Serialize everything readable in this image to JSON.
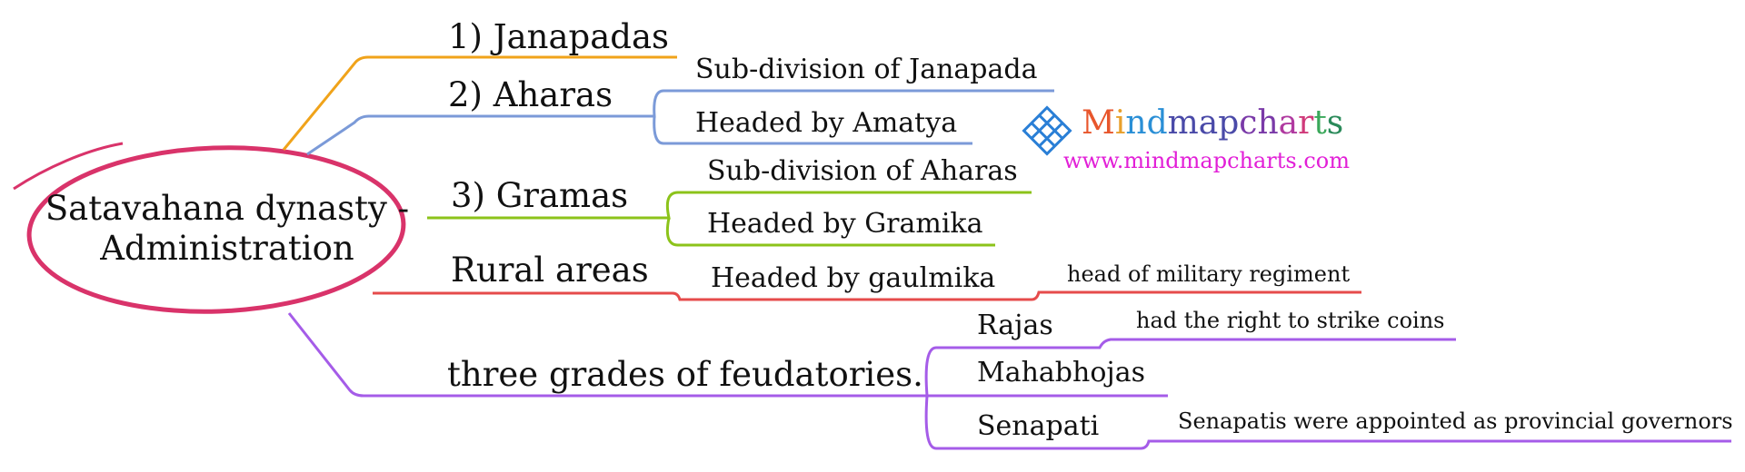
{
  "central": {
    "line1": "Satavahana dynasty -",
    "line2": "Administration",
    "color": "#d9336a"
  },
  "branches": [
    {
      "id": "janapadas",
      "label": "1) Janapadas",
      "color": "#f0a31a",
      "children": []
    },
    {
      "id": "aharas",
      "label": "2) Aharas",
      "color": "#7b9ad8",
      "children": [
        {
          "label": "Sub-division of Janapada"
        },
        {
          "label": "Headed by Amatya"
        }
      ]
    },
    {
      "id": "gramas",
      "label": "3) Gramas",
      "color": "#8cc31a",
      "children": [
        {
          "label": "Sub-division of Aharas"
        },
        {
          "label": "Headed by Gramika"
        }
      ]
    },
    {
      "id": "rural",
      "label": "Rural areas",
      "color": "#e64b4b",
      "children": [
        {
          "label": "Headed by gaulmika",
          "children": [
            {
              "label": "head of military regiment"
            }
          ]
        }
      ]
    },
    {
      "id": "feudatories",
      "label": "three grades of feudatories.",
      "color": "#a55ce8",
      "children": [
        {
          "label": "Rajas",
          "children": [
            {
              "label": "had the right to strike coins"
            }
          ]
        },
        {
          "label": "Mahabhojas"
        },
        {
          "label": "Senapati",
          "children": [
            {
              "label": "Senapatis were appointed as provincial governors"
            }
          ]
        }
      ]
    }
  ],
  "logo": {
    "letters": [
      {
        "ch": "M",
        "color": "#e8562c"
      },
      {
        "ch": "i",
        "color": "#e8a02c"
      },
      {
        "ch": "n",
        "color": "#2a8fd6"
      },
      {
        "ch": "d",
        "color": "#2a8fd6"
      },
      {
        "ch": "m",
        "color": "#4a4aa8"
      },
      {
        "ch": "a",
        "color": "#4a4aa8"
      },
      {
        "ch": "p",
        "color": "#4a4aa8"
      },
      {
        "ch": "c",
        "color": "#7a3aa8"
      },
      {
        "ch": "h",
        "color": "#7a3aa8"
      },
      {
        "ch": "a",
        "color": "#b03aa0"
      },
      {
        "ch": "r",
        "color": "#d03a7a"
      },
      {
        "ch": "t",
        "color": "#3aa85a"
      },
      {
        "ch": "s",
        "color": "#2a8a5a"
      }
    ],
    "url": "www.mindmapcharts.com",
    "icon": "endless-knot-icon"
  }
}
